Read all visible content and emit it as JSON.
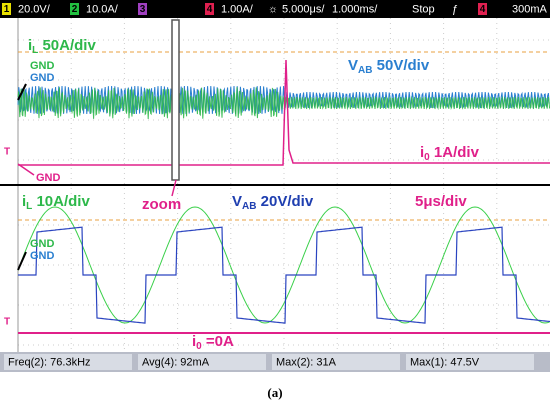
{
  "top_bar": {
    "ch1_num": "1",
    "ch1_scale": "20.0V/",
    "ch2_num": "2",
    "ch2_scale": "10.0A/",
    "ch3_num": "3",
    "ch4_num": "4",
    "ch4_scale": "1.00A/",
    "timebase": "5.000μs/",
    "zoom_timebase": "1.000ms/",
    "status": "Stop",
    "trig_ch": "4",
    "trig_level": "300mA"
  },
  "upper": {
    "il": {
      "main": "i",
      "sub": "L",
      "rest": " 50A/div"
    },
    "vab": {
      "main": "V",
      "sub": "AB",
      "rest": " 50V/div"
    },
    "io": {
      "main": "i",
      "sub": "0",
      "rest": " 1A/div"
    },
    "gnd_green": "GND",
    "gnd_blue": "GND",
    "gnd_pink": "GND",
    "zoom": "zoom"
  },
  "lower": {
    "il": {
      "main": "i",
      "sub": "L",
      "rest": " 10A/div"
    },
    "vab": {
      "main": "V",
      "sub": "AB",
      "rest": " 20V/div"
    },
    "time": "5μs/div",
    "gnd_green": "GND",
    "gnd_blue": "GND",
    "io": {
      "main": "i",
      "sub": "0",
      "rest": " =0A"
    }
  },
  "measurements": [
    "Freq(2): 76.3kHz",
    "Avg(4): 92mA",
    "Max(2): 31A",
    "Max(1): 47.5V"
  ],
  "caption": "(a)"
}
